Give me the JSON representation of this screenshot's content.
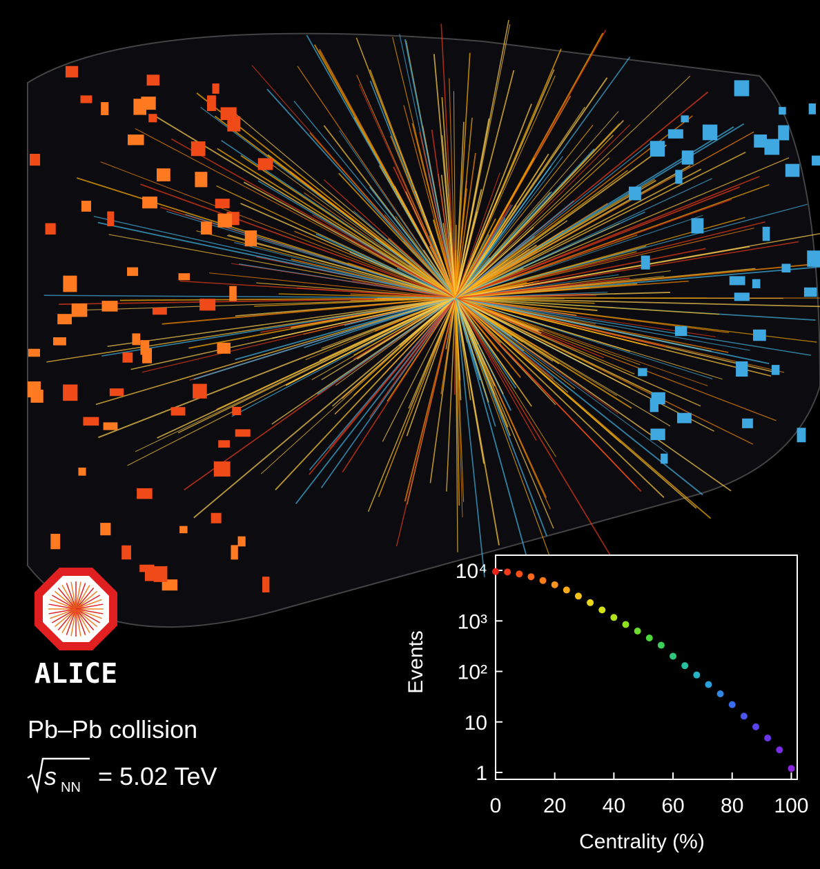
{
  "chart_data": {
    "type": "scatter",
    "logo": "ALICE",
    "subtitle": "Pb–Pb collision",
    "energy": {
      "symbol": "s",
      "subscript": "NN",
      "text": "= 5.02 TeV"
    },
    "xlabel": "Centrality (%)",
    "ylabel": "Events",
    "log_y": true,
    "xlim": [
      0,
      102
    ],
    "ylim": [
      0.73,
      20000
    ],
    "xticks": [
      0,
      20,
      40,
      60,
      80,
      100
    ],
    "yticks": [
      {
        "value": 1,
        "label": "1"
      },
      10,
      {
        "value": 100,
        "label": "10²"
      },
      {
        "value": 1000,
        "label": "10³"
      },
      {
        "value": 10000,
        "label": "10⁴"
      }
    ],
    "x": [
      0,
      4,
      8,
      12,
      16,
      20,
      24,
      28,
      32,
      36,
      40,
      44,
      48,
      52,
      56,
      60,
      64,
      68,
      72,
      76,
      80,
      84,
      88,
      92,
      96,
      100
    ],
    "values": [
      9500,
      9300,
      8500,
      7500,
      6300,
      5200,
      4100,
      3100,
      2300,
      1650,
      1170,
      850,
      630,
      460,
      330,
      200,
      130,
      85,
      55,
      36,
      22,
      13,
      8,
      4.8,
      2.8,
      1.2
    ],
    "colors": [
      "#e8231a",
      "#f03a1a",
      "#f5501a",
      "#f8661a",
      "#fa7d1a",
      "#fb941a",
      "#fbab1a",
      "#f6c21a",
      "#ebd61a",
      "#d3e01a",
      "#b2e21c",
      "#8ee020",
      "#6cdc2a",
      "#4fd63c",
      "#3ccf5a",
      "#30c87c",
      "#28c0a0",
      "#26b4c4",
      "#2aa0dc",
      "#3286e8",
      "#3c6cf0",
      "#4a56f2",
      "#5a44f0",
      "#6a36ec",
      "#7a2ce6",
      "#8a26de"
    ]
  }
}
